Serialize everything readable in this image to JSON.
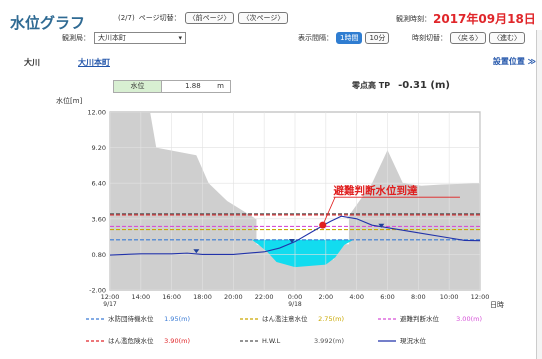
{
  "header": {
    "title": "水位グラフ",
    "page_indicator": "(2/7)",
    "page_switch_label": "ページ切替：",
    "prev_page": "〈前ページ〉",
    "next_page": "〈次ページ〉",
    "observed_time_label": "観測時刻：",
    "observed_time_value": "2017年09月18日"
  },
  "controls": {
    "station_label": "観測局：",
    "station_value": "大川本町",
    "interval_label": "表示間隔：",
    "interval_options": [
      "1時間",
      "10分"
    ],
    "interval_selected": "1時間",
    "time_switch_label": "時刻切替：",
    "back": "〈戻る〉",
    "forward": "〈進む〉"
  },
  "location": {
    "river": "大川",
    "station": "大川本町",
    "install_position": "設置位置 ≫"
  },
  "water_level": {
    "label": "水位",
    "value": "1.88",
    "unit": "m"
  },
  "zero_height": {
    "label": "零点高 TP",
    "value": "-0.31 (m)"
  },
  "colors": {
    "standby": "#3a7bd5",
    "caution": "#c9a800",
    "evacuation": "#d64fd8",
    "danger": "#e0262a",
    "hwl": "#555555",
    "current": "#2233aa",
    "water_fill": "#12dcef",
    "ground": "#cfcfcf"
  },
  "chart_data": {
    "type": "line",
    "ylabel": "水位[m]",
    "xlabel": "日時",
    "ylim": [
      -2.0,
      12.0
    ],
    "yticks": [
      "12.00",
      "9.20",
      "6.40",
      "3.60",
      "0.80",
      "-2.00"
    ],
    "xticks": [
      "12:00",
      "14:00",
      "16:00",
      "18:00",
      "20:00",
      "22:00",
      "0:00",
      "2:00",
      "4:00",
      "6:00",
      "8:00",
      "10:00",
      "12:00"
    ],
    "xdates": [
      "9/17",
      "9/18"
    ],
    "annotation": "避難判断水位到達",
    "series": [
      {
        "name": "現況水位",
        "x": [
          0,
          2,
          4,
          5,
          6,
          8,
          10,
          11,
          12,
          13,
          14,
          14.3,
          15,
          16,
          17,
          18,
          20,
          22,
          23,
          24
        ],
        "values": [
          0.75,
          0.85,
          0.85,
          0.9,
          0.8,
          0.8,
          1.0,
          1.3,
          1.8,
          2.5,
          3.2,
          3.4,
          3.8,
          3.6,
          3.1,
          2.9,
          2.5,
          2.1,
          1.9,
          1.88
        ]
      }
    ],
    "threshold_lines": [
      {
        "name": "水防団待機水位",
        "value": "1.95",
        "y": 1.95,
        "color": "#3a7bd5",
        "style": "dashed"
      },
      {
        "name": "はん濫注意水位",
        "value": "2.75",
        "y": 2.75,
        "color": "#c9a800",
        "style": "dashed"
      },
      {
        "name": "避難判断水位",
        "value": "3.00",
        "y": 3.0,
        "color": "#d64fd8",
        "style": "dashed"
      },
      {
        "name": "はん濫危険水位",
        "value": "3.90",
        "y": 3.9,
        "color": "#e0262a",
        "style": "dashed"
      },
      {
        "name": "H.W.L",
        "value": "3.992",
        "y": 3.992,
        "color": "#555555",
        "style": "dashed"
      }
    ],
    "current_legend": "現況水位"
  }
}
